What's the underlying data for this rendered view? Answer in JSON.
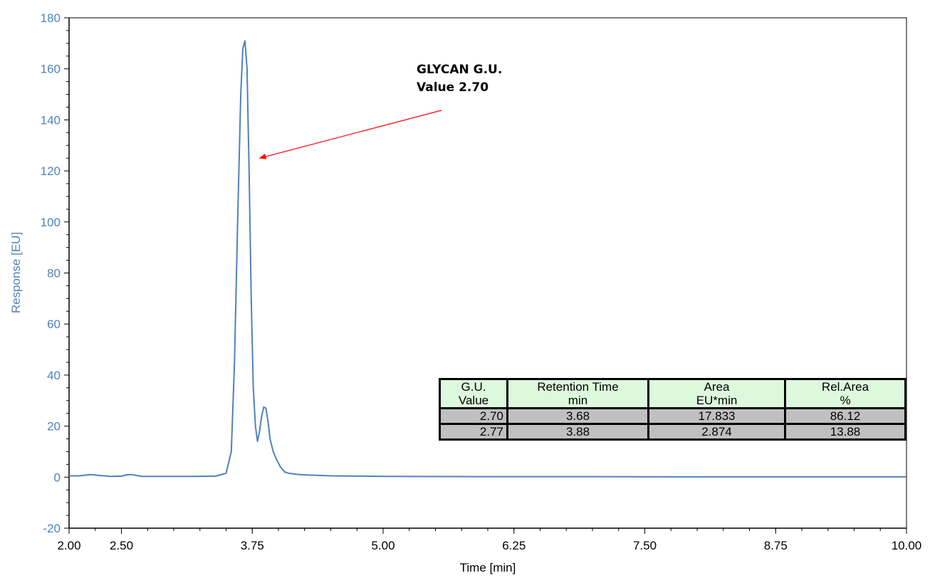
{
  "chart_data": {
    "type": "line",
    "title": "",
    "xlabel": "Time [min]",
    "ylabel": "Response [EU]",
    "xlim": [
      2.0,
      10.0
    ],
    "ylim": [
      -20,
      180
    ],
    "x_ticks": [
      2.0,
      2.5,
      3.75,
      5.0,
      6.25,
      7.5,
      8.75,
      10.0
    ],
    "x_tick_labels": [
      "2.00",
      "2.50",
      "3.75",
      "5.00",
      "6.25",
      "7.50",
      "8.75",
      "10.00"
    ],
    "y_ticks": [
      -20,
      0,
      20,
      40,
      60,
      80,
      100,
      120,
      140,
      160,
      180
    ],
    "y_tick_labels": [
      "-20",
      "0",
      "20",
      "40",
      "60",
      "80",
      "100",
      "120",
      "140",
      "160",
      "180"
    ],
    "grid": false,
    "series": [
      {
        "color": "#4f81bd",
        "x": [
          2.0,
          2.1,
          2.2,
          2.3,
          2.4,
          2.5,
          2.55,
          2.6,
          2.65,
          2.7,
          2.8,
          3.0,
          3.2,
          3.4,
          3.5,
          3.55,
          3.58,
          3.61,
          3.64,
          3.66,
          3.68,
          3.7,
          3.72,
          3.74,
          3.76,
          3.78,
          3.8,
          3.82,
          3.84,
          3.86,
          3.88,
          3.9,
          3.92,
          3.95,
          3.98,
          4.02,
          4.06,
          4.1,
          4.2,
          4.3,
          4.5,
          5.0,
          6.0,
          7.0,
          8.0,
          9.0,
          10.0
        ],
        "y": [
          0.5,
          0.5,
          1.0,
          0.6,
          0.3,
          0.4,
          0.9,
          1.0,
          0.6,
          0.3,
          0.3,
          0.3,
          0.3,
          0.4,
          1.5,
          10,
          45,
          100,
          150,
          168,
          171,
          160,
          120,
          70,
          35,
          20,
          14,
          18,
          24,
          27.5,
          27,
          22,
          15,
          10,
          7,
          4,
          2,
          1.5,
          1.0,
          0.8,
          0.5,
          0.3,
          0.2,
          0.2,
          0.1,
          0.1,
          0.1
        ]
      }
    ],
    "annotations": [
      {
        "lines": [
          "GLYCAN G.U.",
          "Value 2.70"
        ],
        "arrow_color": "#ff0000",
        "points_to": {
          "x": 3.82,
          "y": 125
        }
      }
    ],
    "table": {
      "headers": [
        [
          "G.U.",
          "Value"
        ],
        [
          "Retention Time",
          "min"
        ],
        [
          "Area",
          "EU*min"
        ],
        [
          "Rel.Area",
          "%"
        ]
      ],
      "rows": [
        [
          "2.70",
          "3.68",
          "17.833",
          "86.12"
        ],
        [
          "2.77",
          "3.88",
          "2.874",
          "13.88"
        ]
      ],
      "header_bg": "#ddf9dd",
      "row_bg": "#c0c0c0"
    }
  }
}
